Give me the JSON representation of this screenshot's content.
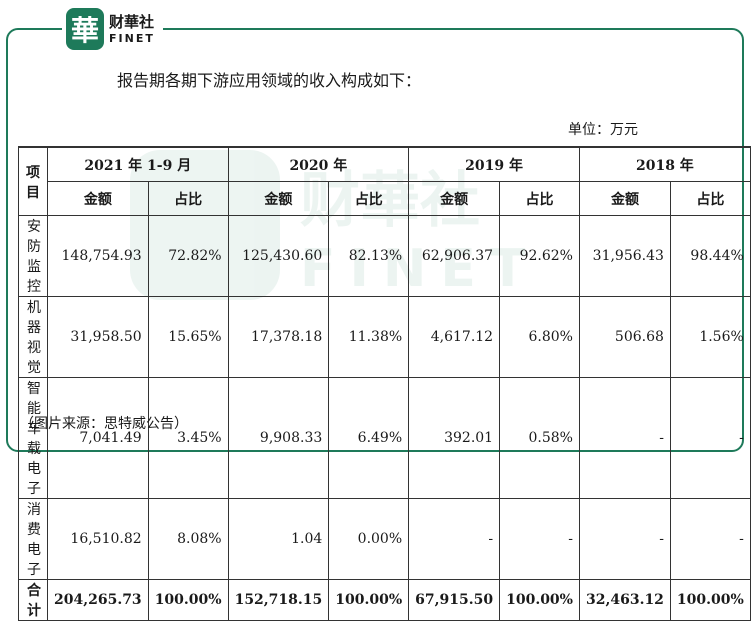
{
  "logo": {
    "seal": "華",
    "cn": "财華社",
    "en": "FINET"
  },
  "watermark": {
    "cn": "财華社",
    "en": "FINET"
  },
  "intro": "报告期各期下游应用领域的收入构成如下：",
  "unit": "单位：万元",
  "table": {
    "item_header": "项目",
    "periods": [
      "2021 年 1-9 月",
      "2020 年",
      "2019 年",
      "2018 年"
    ],
    "sub_headers": [
      "金额",
      "占比"
    ],
    "rows": [
      {
        "name": "安防监控",
        "cells": [
          "148,754.93",
          "72.82%",
          "125,430.60",
          "82.13%",
          "62,906.37",
          "92.62%",
          "31,956.43",
          "98.44%"
        ]
      },
      {
        "name": "机器视觉",
        "cells": [
          "31,958.50",
          "15.65%",
          "17,378.18",
          "11.38%",
          "4,617.12",
          "6.80%",
          "506.68",
          "1.56%"
        ]
      },
      {
        "name": "智能车载电子",
        "cells": [
          "7,041.49",
          "3.45%",
          "9,908.33",
          "6.49%",
          "392.01",
          "0.58%",
          "-",
          "-"
        ]
      },
      {
        "name": "消费电子",
        "cells": [
          "16,510.82",
          "8.08%",
          "1.04",
          "0.00%",
          "-",
          "-",
          "-",
          "-"
        ]
      }
    ],
    "total": {
      "name": "合计",
      "cells": [
        "204,265.73",
        "100.00%",
        "152,718.15",
        "100.00%",
        "67,915.50",
        "100.00%",
        "32,463.12",
        "100.00%"
      ]
    }
  },
  "caption": "（图片来源：思特威公告）",
  "colors": {
    "brand": "#1e7a5a"
  }
}
